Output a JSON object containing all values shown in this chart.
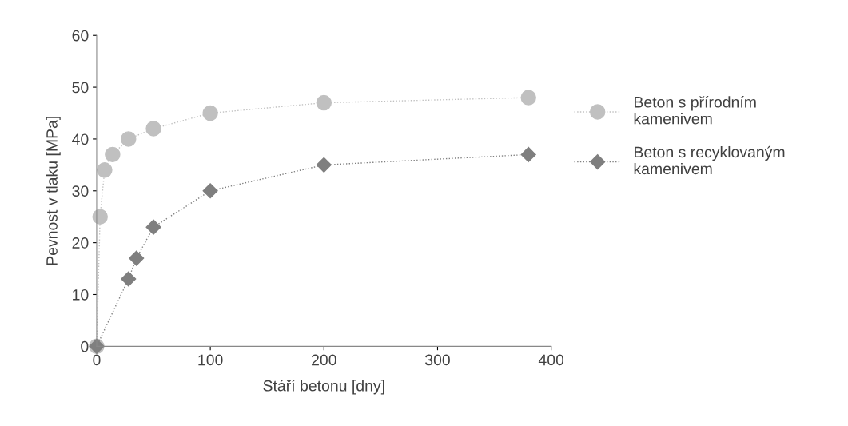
{
  "chart_data": {
    "type": "line",
    "xlabel": "Stáří betonu [dny]",
    "ylabel": "Pevnost v tlaku [MPa]",
    "xlim": [
      0,
      400
    ],
    "xticks": [
      0,
      100,
      200,
      300,
      400
    ],
    "ylim": [
      0,
      60
    ],
    "yticks": [
      0,
      10,
      20,
      30,
      40,
      50,
      60
    ],
    "grid": false,
    "legend": "right",
    "line_style": "dotted",
    "series": [
      {
        "name": "Beton s přírodním\nkamenivem",
        "color": "#c0c0c0",
        "marker": "circle",
        "x": [
          0,
          3,
          7,
          14,
          28,
          50,
          100,
          200,
          380
        ],
        "values": [
          0,
          25,
          34,
          37,
          40,
          42,
          45,
          47,
          48
        ]
      },
      {
        "name": "Beton s recyklovaným\nkamenivem",
        "color": "#7f7f7f",
        "marker": "diamond",
        "x": [
          0,
          28,
          35,
          50,
          100,
          200,
          380
        ],
        "values": [
          0,
          13,
          17,
          23,
          30,
          35,
          37
        ]
      }
    ]
  }
}
